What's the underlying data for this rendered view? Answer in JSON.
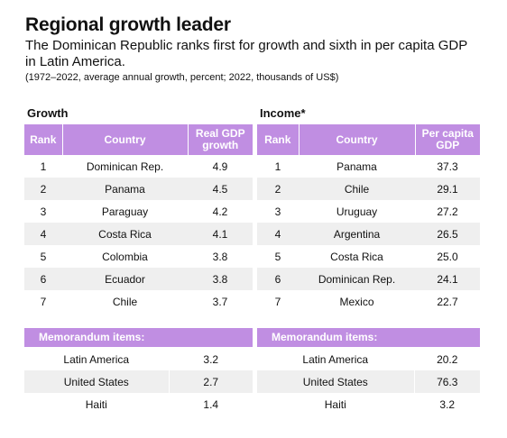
{
  "title": "Regional growth leader",
  "subtitle": "The Dominican Republic ranks first for growth and sixth in per capita GDP in Latin America.",
  "note": "(1972–2022, average annual growth, percent; 2022, thousands of US$)",
  "chart_data": [
    {
      "type": "table",
      "section": "Growth",
      "columns": [
        "Rank",
        "Country",
        "Real GDP growth"
      ],
      "rows": [
        {
          "rank": "1",
          "country": "Dominican Rep.",
          "value": "4.9"
        },
        {
          "rank": "2",
          "country": "Panama",
          "value": "4.5"
        },
        {
          "rank": "3",
          "country": "Paraguay",
          "value": "4.2"
        },
        {
          "rank": "4",
          "country": "Costa Rica",
          "value": "4.1"
        },
        {
          "rank": "5",
          "country": "Colombia",
          "value": "3.8"
        },
        {
          "rank": "6",
          "country": "Ecuador",
          "value": "3.8"
        },
        {
          "rank": "7",
          "country": "Chile",
          "value": "3.7"
        }
      ],
      "memo_label": "Memorandum items:",
      "memo_rows": [
        {
          "country": "Latin America",
          "value": "3.2"
        },
        {
          "country": "United States",
          "value": "2.7"
        },
        {
          "country": "Haiti",
          "value": "1.4"
        }
      ]
    },
    {
      "type": "table",
      "section": "Income*",
      "columns": [
        "Rank",
        "Country",
        "Per capita GDP"
      ],
      "rows": [
        {
          "rank": "1",
          "country": "Panama",
          "value": "37.3"
        },
        {
          "rank": "2",
          "country": "Chile",
          "value": "29.1"
        },
        {
          "rank": "3",
          "country": "Uruguay",
          "value": "27.2"
        },
        {
          "rank": "4",
          "country": "Argentina",
          "value": "26.5"
        },
        {
          "rank": "5",
          "country": "Costa Rica",
          "value": "25.0"
        },
        {
          "rank": "6",
          "country": "Dominican Rep.",
          "value": "24.1"
        },
        {
          "rank": "7",
          "country": "Mexico",
          "value": "22.7"
        }
      ],
      "memo_label": "Memorandum items:",
      "memo_rows": [
        {
          "country": "Latin America",
          "value": "20.2"
        },
        {
          "country": "United States",
          "value": "76.3"
        },
        {
          "country": "Haiti",
          "value": "3.2"
        }
      ]
    }
  ],
  "colors": {
    "header": "#c08ee2",
    "stripe": "#efefef"
  }
}
